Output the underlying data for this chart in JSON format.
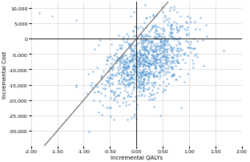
{
  "title": "",
  "xlabel": "Incremental QALYs",
  "ylabel": "Incremental Cost",
  "xlim": [
    -2.0,
    2.0
  ],
  "ylim": [
    -35000,
    12000
  ],
  "xticks": [
    -2.0,
    -1.5,
    -1.0,
    -0.5,
    0.0,
    0.5,
    1.0,
    1.5,
    2.0
  ],
  "yticks": [
    -30000,
    -25000,
    -20000,
    -15000,
    -10000,
    -5000,
    0,
    5000,
    10000
  ],
  "scatter_color": "#5b9bd5",
  "scatter_alpha": 0.65,
  "scatter_size": 3,
  "line_color": "#666666",
  "line_slope": 20000,
  "n_points": 1000,
  "seed": 42,
  "mean_x": 0.15,
  "mean_y": -7500,
  "std_x": 0.42,
  "std_y": 7000,
  "corr": 0.5,
  "bg_color": "#ffffff",
  "grid_color": "#cccccc",
  "tick_fontsize": 4.5,
  "label_fontsize": 5.0
}
